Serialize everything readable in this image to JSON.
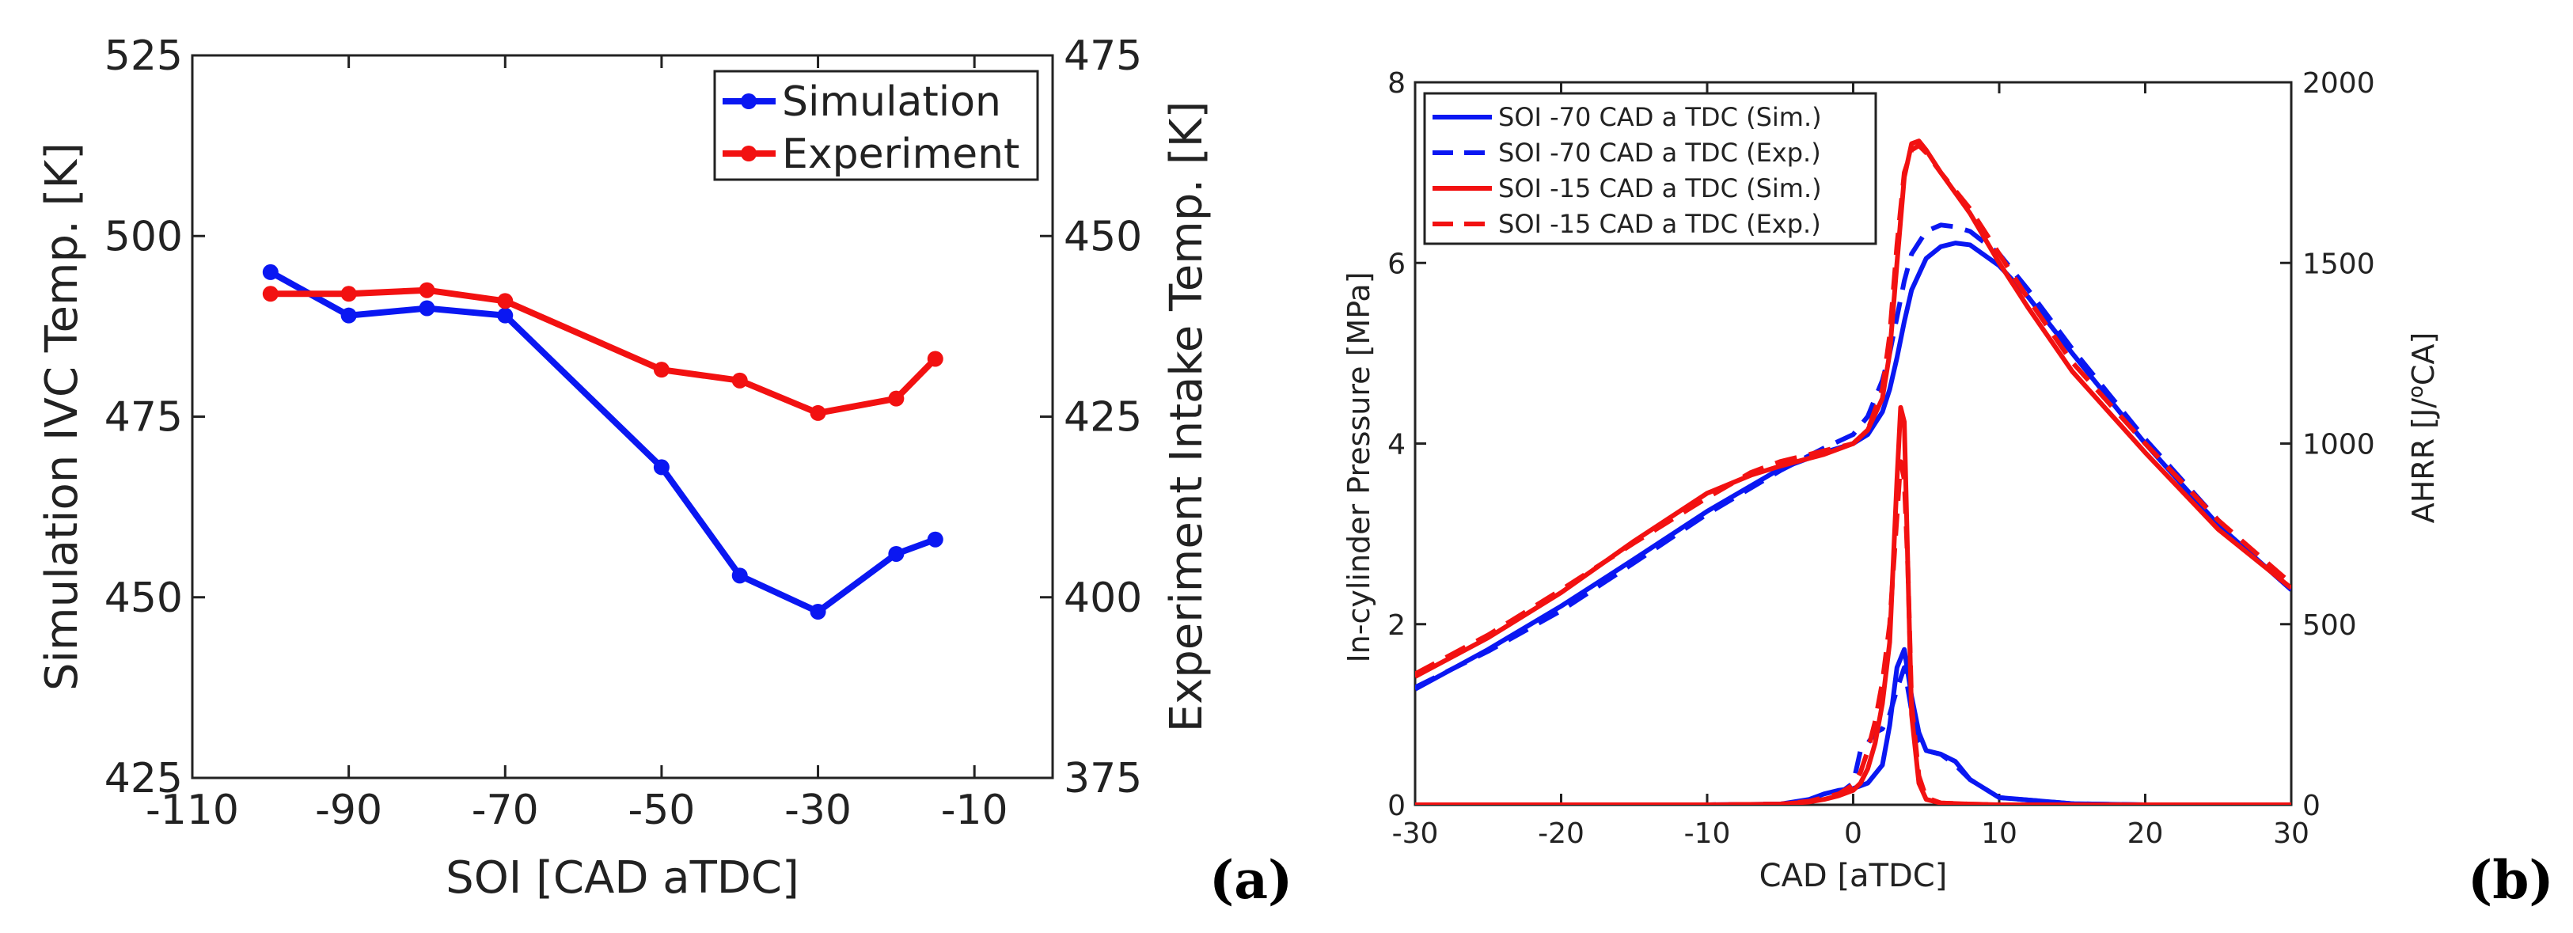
{
  "chart_data": [
    {
      "type": "line",
      "panel_label": "(a)",
      "xlabel": "SOI [CAD aTDC]",
      "ylabel_left": "Simulation IVC Temp. [K]",
      "ylabel_right": "Experiment Intake Temp. [K]",
      "xlim": [
        -110,
        0
      ],
      "ylim_left": [
        425,
        525
      ],
      "ylim_right": [
        375,
        475
      ],
      "x_ticks": [
        -110,
        -90,
        -70,
        -50,
        -30,
        -10
      ],
      "y_ticks_left": [
        425,
        450,
        475,
        500,
        525
      ],
      "y_ticks_right": [
        375,
        400,
        425,
        450,
        475
      ],
      "legend_position": "top-right",
      "series": [
        {
          "name": "Simulation",
          "color": "#0a17f2",
          "axis": "left",
          "x": [
            -100,
            -90,
            -80,
            -70,
            -50,
            -40,
            -30,
            -20,
            -15
          ],
          "y": [
            495,
            489,
            490,
            489,
            468,
            453,
            448,
            456,
            458
          ]
        },
        {
          "name": "Experiment",
          "color": "#f21111",
          "axis": "right",
          "x": [
            -100,
            -90,
            -80,
            -70,
            -50,
            -40,
            -30,
            -20,
            -15
          ],
          "y": [
            442,
            442,
            442.5,
            441,
            431.5,
            430,
            425.5,
            427.5,
            433
          ]
        }
      ]
    },
    {
      "type": "line",
      "panel_label": "(b)",
      "xlabel": "CAD [aTDC]",
      "ylabel_left": "In-cylinder Pressure [MPa]",
      "ylabel_right": "AHRR [J/",
      "ylabel_right_sup": "o",
      "ylabel_right_tail": "CA]",
      "xlim": [
        -30,
        30
      ],
      "ylim_left": [
        0,
        8
      ],
      "ylim_right": [
        0,
        2000
      ],
      "x_ticks": [
        -30,
        -20,
        -10,
        0,
        10,
        20,
        30
      ],
      "y_ticks_left": [
        0,
        2,
        4,
        6,
        8
      ],
      "y_ticks_right": [
        0,
        500,
        1000,
        1500,
        2000
      ],
      "legend_position": "top-left",
      "series": [
        {
          "name": "SOI -70 CAD a TDC (Sim.)",
          "color": "#0a17f2",
          "dash": "solid",
          "pressure": {
            "x": [
              -30,
              -25,
              -20,
              -15,
              -10,
              -5,
              -2,
              0,
              1,
              2,
              2.5,
              3,
              3.5,
              4,
              5,
              6,
              7,
              8,
              10,
              12,
              15,
              20,
              25,
              30
            ],
            "y": [
              1.28,
              1.72,
              2.2,
              2.72,
              3.25,
              3.72,
              3.9,
              4.0,
              4.1,
              4.35,
              4.6,
              4.95,
              5.35,
              5.7,
              6.05,
              6.18,
              6.22,
              6.2,
              5.97,
              5.62,
              5.0,
              4.0,
              3.1,
              2.38
            ]
          },
          "ahrr": {
            "x": [
              -30,
              -10,
              -5,
              -3,
              -2,
              -1,
              0,
              1,
              2,
              2.5,
              3,
              3.5,
              4,
              4.5,
              5,
              6,
              7,
              8,
              10,
              15,
              20,
              30
            ],
            "y": [
              0,
              0,
              2,
              15,
              30,
              40,
              45,
              60,
              110,
              220,
              380,
              430,
              300,
              200,
              150,
              140,
              120,
              70,
              20,
              3,
              0,
              0
            ]
          }
        },
        {
          "name": "SOI -70 CAD a TDC (Exp.)",
          "color": "#0a17f2",
          "dash": "dashed",
          "pressure": {
            "x": [
              -30,
              -25,
              -20,
              -15,
              -10,
              -5,
              -2,
              0,
              1,
              2,
              2.5,
              3,
              3.5,
              4,
              5,
              6,
              7,
              8,
              10,
              12,
              15,
              20,
              25,
              30
            ],
            "y": [
              1.3,
              1.7,
              2.15,
              2.68,
              3.22,
              3.7,
              3.95,
              4.1,
              4.3,
              4.7,
              5.0,
              5.4,
              5.8,
              6.1,
              6.35,
              6.42,
              6.4,
              6.35,
              6.1,
              5.7,
              5.05,
              4.05,
              3.15,
              2.42
            ]
          },
          "ahrr": {
            "x": [
              -30,
              -10,
              -5,
              -3,
              -2,
              -1,
              0,
              0.5,
              1,
              1.5,
              2,
              2.5,
              3,
              3.5,
              4,
              4.5,
              5,
              6,
              7,
              8,
              10,
              15,
              20,
              30
            ],
            "y": [
              0,
              0,
              2,
              10,
              20,
              30,
              60,
              150,
              170,
              200,
              210,
              250,
              320,
              380,
              260,
              180,
              150,
              140,
              110,
              70,
              20,
              3,
              0,
              0
            ]
          }
        },
        {
          "name": "SOI -15 CAD a TDC (Sim.)",
          "color": "#f21111",
          "dash": "solid",
          "pressure": {
            "x": [
              -30,
              -25,
              -20,
              -15,
              -10,
              -7,
              -5,
              -2,
              0,
              1,
              2,
              2.5,
              3,
              3.5,
              4,
              4.5,
              5,
              6,
              8,
              10,
              12,
              15,
              20,
              25,
              30
            ],
            "y": [
              1.42,
              1.85,
              2.35,
              2.92,
              3.45,
              3.65,
              3.75,
              3.88,
              4.0,
              4.15,
              4.5,
              5.0,
              6.0,
              6.95,
              7.32,
              7.35,
              7.25,
              7.0,
              6.55,
              6.0,
              5.5,
              4.8,
              3.9,
              3.05,
              2.4
            ]
          },
          "ahrr": {
            "x": [
              -30,
              -10,
              -5,
              -3,
              -2,
              -1,
              0,
              0.5,
              1,
              1.5,
              2,
              2.5,
              3,
              3.25,
              3.5,
              3.75,
              4,
              4.5,
              5,
              6,
              8,
              10,
              15,
              30
            ],
            "y": [
              0,
              0,
              2,
              8,
              15,
              25,
              40,
              60,
              100,
              170,
              280,
              450,
              900,
              1100,
              1060,
              650,
              250,
              60,
              15,
              5,
              2,
              0,
              0,
              0
            ]
          }
        },
        {
          "name": "SOI -15 CAD a TDC (Exp.)",
          "color": "#f21111",
          "dash": "dashed",
          "pressure": {
            "x": [
              -30,
              -25,
              -20,
              -15,
              -10,
              -7,
              -5,
              -2,
              0,
              1,
              2,
              2.5,
              3,
              3.5,
              4,
              4.5,
              5,
              6,
              8,
              10,
              12,
              15,
              20,
              25,
              30
            ],
            "y": [
              1.45,
              1.88,
              2.38,
              2.9,
              3.4,
              3.68,
              3.8,
              3.92,
              4.0,
              4.15,
              4.6,
              5.2,
              6.2,
              7.0,
              7.25,
              7.3,
              7.22,
              7.0,
              6.6,
              6.1,
              5.6,
              4.9,
              4.0,
              3.15,
              2.45
            ]
          },
          "ahrr": {
            "x": [
              -30,
              -10,
              -5,
              -3,
              -2,
              -1,
              0,
              0.5,
              1,
              1.5,
              2,
              2.5,
              3,
              3.25,
              3.5,
              3.75,
              4,
              4.5,
              5,
              6,
              8,
              10,
              15,
              30
            ],
            "y": [
              0,
              0,
              2,
              10,
              20,
              30,
              55,
              90,
              150,
              230,
              340,
              500,
              800,
              950,
              900,
              650,
              280,
              80,
              20,
              5,
              2,
              0,
              0,
              0
            ]
          }
        }
      ]
    }
  ]
}
